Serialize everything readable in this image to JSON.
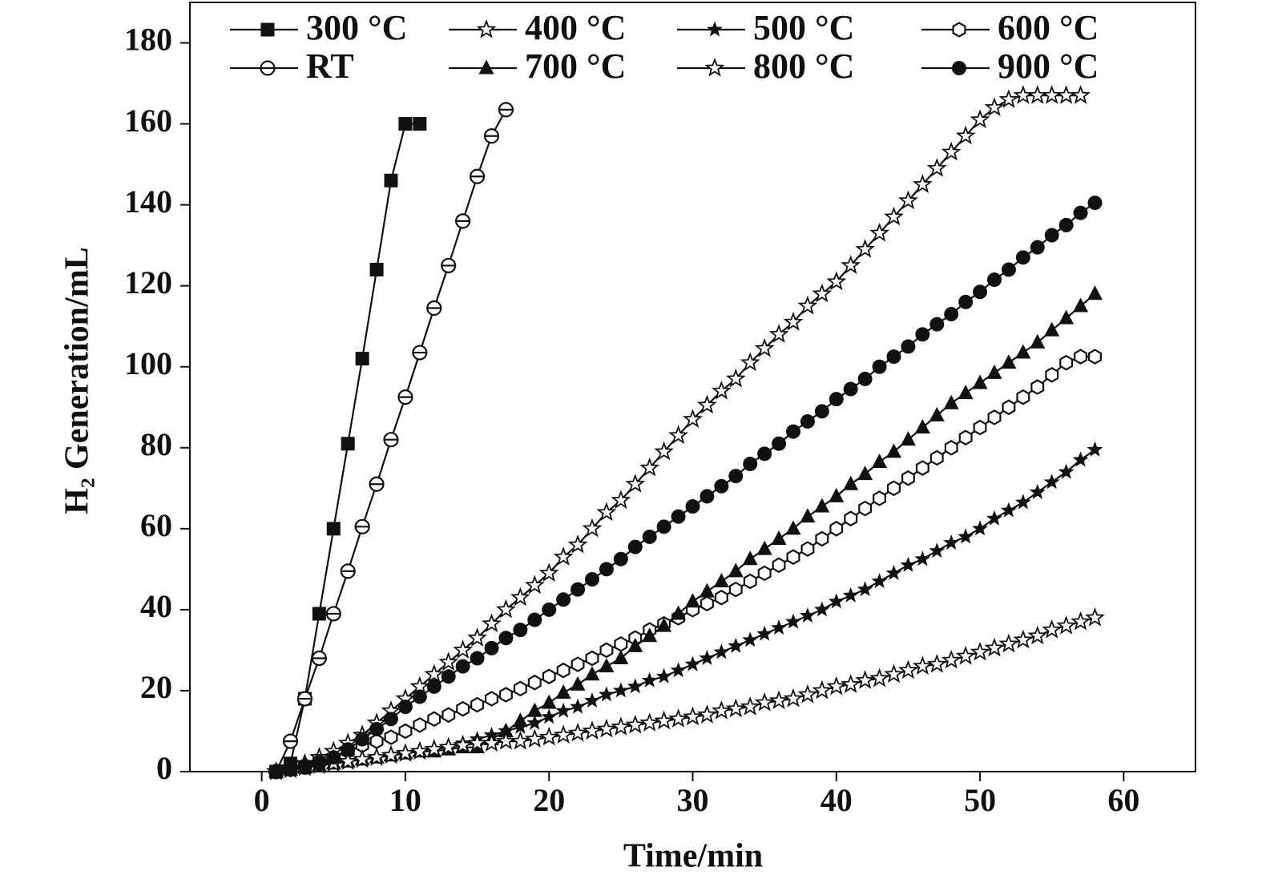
{
  "chart_data": {
    "type": "line",
    "xlabel": "Time/min",
    "ylabel": "H₂ Generation/mL",
    "xlim": [
      -5,
      65
    ],
    "xticks": [
      0,
      10,
      20,
      30,
      40,
      50,
      60
    ],
    "ylim": [
      0,
      190
    ],
    "yticks": [
      0,
      20,
      40,
      60,
      80,
      100,
      120,
      140,
      160,
      180
    ],
    "legend": "upper center",
    "legend_columns": 4,
    "series": [
      {
        "name": "300 °C",
        "color": "#111111",
        "marker": "square",
        "x": [
          1,
          2,
          3,
          4,
          5,
          6,
          7,
          8,
          9,
          10,
          11
        ],
        "values": [
          0,
          2,
          18,
          39,
          60,
          81,
          102,
          124,
          146,
          160,
          160
        ]
      },
      {
        "name": "400 °C",
        "color": "#111111",
        "marker": "star-open",
        "x": [
          1,
          2,
          3,
          4,
          5,
          6,
          7,
          8,
          9,
          10,
          11,
          12,
          13,
          14,
          15,
          16,
          17,
          18,
          19,
          20,
          21,
          22,
          23,
          24,
          25,
          26,
          27,
          28,
          29,
          30,
          31,
          32,
          33,
          34,
          35,
          36,
          37,
          38,
          39,
          40,
          41,
          42,
          43,
          44,
          45,
          46,
          47,
          48,
          49,
          50,
          51,
          52,
          53,
          54,
          55,
          56,
          57
        ],
        "values": [
          0,
          1,
          2,
          3.5,
          5,
          7,
          9,
          12,
          15,
          18,
          21,
          24,
          27,
          30,
          33,
          36.5,
          40,
          43,
          46,
          49,
          53,
          56,
          60,
          64,
          67,
          71,
          75,
          79,
          83,
          87,
          90.5,
          94,
          97,
          101,
          104.5,
          108,
          111,
          115,
          118,
          121,
          125,
          129,
          133,
          137,
          141,
          145,
          149,
          153,
          157,
          161,
          164,
          166,
          167,
          167,
          167,
          167,
          167
        ]
      },
      {
        "name": "500 °C",
        "color": "#111111",
        "marker": "star",
        "x": [
          1,
          2,
          3,
          4,
          5,
          6,
          7,
          8,
          9,
          10,
          11,
          12,
          13,
          14,
          15,
          16,
          17,
          18,
          19,
          20,
          21,
          22,
          23,
          24,
          25,
          26,
          27,
          28,
          29,
          30,
          31,
          32,
          33,
          34,
          35,
          36,
          37,
          38,
          39,
          40,
          41,
          42,
          43,
          44,
          45,
          46,
          47,
          48,
          49,
          50,
          51,
          52,
          53,
          54,
          55,
          56,
          57,
          58
        ],
        "values": [
          0,
          0.5,
          1,
          1.5,
          2,
          2.5,
          3,
          3.5,
          4,
          4.5,
          5,
          5.5,
          6,
          7,
          8,
          9,
          10,
          11,
          12,
          13.5,
          15,
          16,
          17.5,
          19,
          20,
          21,
          22.5,
          23.5,
          25,
          26.5,
          28,
          29.5,
          31,
          32.5,
          34,
          35.5,
          37,
          38.5,
          40,
          42,
          43.5,
          45,
          47,
          49,
          51,
          52.5,
          54.5,
          56.5,
          58,
          60,
          62.5,
          64.5,
          66.5,
          69,
          71.5,
          74,
          77,
          79.5
        ]
      },
      {
        "name": "600 °C",
        "color": "#111111",
        "marker": "hexagon-open",
        "x": [
          1,
          2,
          3,
          4,
          5,
          6,
          7,
          8,
          9,
          10,
          11,
          12,
          13,
          14,
          15,
          16,
          17,
          18,
          19,
          20,
          21,
          22,
          23,
          24,
          25,
          26,
          27,
          28,
          29,
          30,
          31,
          32,
          33,
          34,
          35,
          36,
          37,
          38,
          39,
          40,
          41,
          42,
          43,
          44,
          45,
          46,
          47,
          48,
          49,
          50,
          51,
          52,
          53,
          54,
          55,
          56,
          57,
          58
        ],
        "values": [
          0,
          0.5,
          1.5,
          2.5,
          3.5,
          5,
          6.5,
          7.5,
          8.5,
          10,
          11.5,
          13,
          14,
          15.5,
          16.5,
          18,
          19,
          20.5,
          22,
          23.5,
          25,
          26.5,
          28,
          30,
          31.5,
          33,
          35,
          36.5,
          38,
          40,
          41.5,
          43,
          45,
          47,
          49,
          51,
          53,
          55,
          57.5,
          60,
          62.5,
          65,
          67.5,
          70,
          72.5,
          75,
          77.5,
          80,
          82.5,
          85,
          87.5,
          90,
          92.5,
          95,
          98,
          101,
          102.5,
          102.5
        ]
      },
      {
        "name": "RT",
        "color": "#111111",
        "marker": "circle-half",
        "x": [
          1,
          2,
          3,
          4,
          5,
          6,
          7,
          8,
          9,
          10,
          11,
          12,
          13,
          14,
          15,
          16,
          17
        ],
        "values": [
          0,
          7.5,
          18,
          28,
          39,
          49.5,
          60.5,
          71,
          82,
          92.5,
          103.5,
          114.5,
          125,
          136,
          147,
          157,
          163.5
        ]
      },
      {
        "name": "700 °C",
        "color": "#111111",
        "marker": "triangle",
        "x": [
          1,
          2,
          3,
          4,
          5,
          6,
          7,
          8,
          9,
          10,
          11,
          12,
          13,
          14,
          15,
          16,
          17,
          18,
          19,
          20,
          21,
          22,
          23,
          24,
          25,
          26,
          27,
          28,
          29,
          30,
          31,
          32,
          33,
          34,
          35,
          36,
          37,
          38,
          39,
          40,
          41,
          42,
          43,
          44,
          45,
          46,
          47,
          48,
          49,
          50,
          51,
          52,
          53,
          54,
          55,
          56,
          57,
          58
        ],
        "values": [
          0,
          0.5,
          1,
          1.5,
          2,
          2.5,
          3,
          3.5,
          4,
          4.5,
          5,
          5,
          5.5,
          6,
          6,
          8,
          10,
          12.5,
          15,
          17,
          19.5,
          21.5,
          24,
          26,
          28,
          31,
          33.5,
          36,
          39,
          42,
          44.5,
          47,
          49.5,
          52.5,
          55,
          57.5,
          60,
          63,
          65.5,
          68,
          71,
          73.5,
          76.5,
          79,
          82,
          85,
          88,
          91,
          93.5,
          96,
          98.5,
          101,
          103.5,
          106,
          109,
          112,
          115,
          118
        ]
      },
      {
        "name": "800 °C",
        "color": "#111111",
        "marker": "star-open",
        "x": [
          1,
          2,
          3,
          4,
          5,
          6,
          7,
          8,
          9,
          10,
          11,
          12,
          13,
          14,
          15,
          16,
          17,
          18,
          19,
          20,
          21,
          22,
          23,
          24,
          25,
          26,
          27,
          28,
          29,
          30,
          31,
          32,
          33,
          34,
          35,
          36,
          37,
          38,
          39,
          40,
          41,
          42,
          43,
          44,
          45,
          46,
          47,
          48,
          49,
          50,
          51,
          52,
          53,
          54,
          55,
          56,
          57,
          58
        ],
        "values": [
          0,
          0.5,
          1,
          1.5,
          2,
          2.5,
          3,
          3.5,
          4,
          4.5,
          5,
          5.5,
          6,
          6.5,
          7,
          7,
          7.5,
          7.5,
          8,
          8.5,
          9,
          9.5,
          10,
          10.5,
          11,
          11.5,
          12,
          12.5,
          13,
          13.5,
          14,
          15,
          15.5,
          16,
          17,
          17.5,
          18,
          19,
          20,
          21,
          21.5,
          22.5,
          23,
          24,
          25,
          26,
          26.5,
          27.5,
          28.5,
          29.5,
          30.5,
          31.5,
          32.5,
          33.5,
          35,
          36,
          37,
          38
        ]
      },
      {
        "name": "900 °C",
        "color": "#111111",
        "marker": "circle",
        "x": [
          1,
          2,
          3,
          4,
          5,
          6,
          7,
          8,
          9,
          10,
          11,
          12,
          13,
          14,
          15,
          16,
          17,
          18,
          19,
          20,
          21,
          22,
          23,
          24,
          25,
          26,
          27,
          28,
          29,
          30,
          31,
          32,
          33,
          34,
          35,
          36,
          37,
          38,
          39,
          40,
          41,
          42,
          43,
          44,
          45,
          46,
          47,
          48,
          49,
          50,
          51,
          52,
          53,
          54,
          55,
          56,
          57,
          58
        ],
        "values": [
          0,
          0.5,
          1,
          2,
          3.5,
          5.5,
          8,
          10.5,
          13,
          16,
          18.5,
          21,
          23.5,
          26,
          28,
          30.5,
          33,
          35,
          37.5,
          40,
          42.5,
          45,
          47.5,
          50,
          52.5,
          55.5,
          58,
          60.5,
          63,
          65.5,
          68,
          70.5,
          73,
          76,
          78.5,
          81,
          84,
          86.5,
          89,
          92,
          94.5,
          97,
          100,
          102.5,
          105,
          108,
          110.5,
          113,
          116,
          118.5,
          121.5,
          124,
          127,
          129.5,
          132.5,
          135,
          138,
          140.5
        ]
      }
    ]
  }
}
